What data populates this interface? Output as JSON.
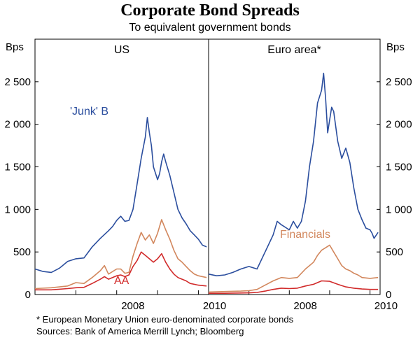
{
  "chart_data": {
    "type": "line",
    "title": "Corporate Bond Spreads",
    "subtitle": "To equivalent government bonds",
    "ylabel_left": "Bps",
    "ylabel_right": "Bps",
    "ylim": [
      0,
      3000
    ],
    "yticks": [
      0,
      500,
      1000,
      1500,
      2000,
      2500
    ],
    "ytick_labels": [
      "0",
      "500",
      "1 000",
      "1 500",
      "2 000",
      "2 500"
    ],
    "xticks": [
      2008,
      2010
    ],
    "xtick_labels": [
      "2008",
      "2010"
    ],
    "grid": false,
    "panels": [
      {
        "title": "US",
        "xlim": [
          2006.0,
          2010.25
        ],
        "series": [
          {
            "name": "'Junk' B",
            "color": "#2b4e9e",
            "points": [
              [
                2006.0,
                300
              ],
              [
                2006.2,
                270
              ],
              [
                2006.4,
                260
              ],
              [
                2006.6,
                310
              ],
              [
                2006.8,
                390
              ],
              [
                2007.0,
                420
              ],
              [
                2007.2,
                430
              ],
              [
                2007.4,
                560
              ],
              [
                2007.6,
                660
              ],
              [
                2007.8,
                750
              ],
              [
                2007.9,
                800
              ],
              [
                2008.0,
                870
              ],
              [
                2008.1,
                920
              ],
              [
                2008.2,
                860
              ],
              [
                2008.3,
                870
              ],
              [
                2008.4,
                1000
              ],
              [
                2008.5,
                1300
              ],
              [
                2008.6,
                1600
              ],
              [
                2008.7,
                1850
              ],
              [
                2008.75,
                2080
              ],
              [
                2008.8,
                1900
              ],
              [
                2008.85,
                1750
              ],
              [
                2008.9,
                1500
              ],
              [
                2009.0,
                1350
              ],
              [
                2009.05,
                1420
              ],
              [
                2009.1,
                1560
              ],
              [
                2009.15,
                1650
              ],
              [
                2009.2,
                1560
              ],
              [
                2009.3,
                1400
              ],
              [
                2009.4,
                1200
              ],
              [
                2009.5,
                1000
              ],
              [
                2009.6,
                900
              ],
              [
                2009.7,
                830
              ],
              [
                2009.8,
                750
              ],
              [
                2009.9,
                700
              ],
              [
                2010.0,
                650
              ],
              [
                2010.1,
                580
              ],
              [
                2010.2,
                560
              ]
            ]
          },
          {
            "name": "Financials",
            "color": "#d2875d",
            "points": [
              [
                2006.0,
                70
              ],
              [
                2006.4,
                80
              ],
              [
                2006.8,
                100
              ],
              [
                2007.0,
                140
              ],
              [
                2007.2,
                130
              ],
              [
                2007.4,
                200
              ],
              [
                2007.6,
                280
              ],
              [
                2007.7,
                340
              ],
              [
                2007.8,
                240
              ],
              [
                2008.0,
                300
              ],
              [
                2008.1,
                300
              ],
              [
                2008.2,
                250
              ],
              [
                2008.3,
                260
              ],
              [
                2008.4,
                450
              ],
              [
                2008.5,
                600
              ],
              [
                2008.6,
                730
              ],
              [
                2008.7,
                640
              ],
              [
                2008.8,
                700
              ],
              [
                2008.9,
                600
              ],
              [
                2009.0,
                720
              ],
              [
                2009.1,
                880
              ],
              [
                2009.2,
                760
              ],
              [
                2009.3,
                650
              ],
              [
                2009.4,
                520
              ],
              [
                2009.5,
                420
              ],
              [
                2009.6,
                380
              ],
              [
                2009.7,
                330
              ],
              [
                2009.8,
                280
              ],
              [
                2009.9,
                240
              ],
              [
                2010.0,
                220
              ],
              [
                2010.2,
                200
              ]
            ]
          },
          {
            "name": "AA",
            "color": "#d12a2a",
            "points": [
              [
                2006.0,
                55
              ],
              [
                2006.4,
                55
              ],
              [
                2006.8,
                70
              ],
              [
                2007.0,
                80
              ],
              [
                2007.2,
                85
              ],
              [
                2007.4,
                130
              ],
              [
                2007.6,
                180
              ],
              [
                2007.7,
                210
              ],
              [
                2007.8,
                180
              ],
              [
                2008.0,
                220
              ],
              [
                2008.1,
                230
              ],
              [
                2008.2,
                210
              ],
              [
                2008.3,
                230
              ],
              [
                2008.4,
                330
              ],
              [
                2008.5,
                400
              ],
              [
                2008.6,
                500
              ],
              [
                2008.7,
                460
              ],
              [
                2008.8,
                420
              ],
              [
                2008.9,
                380
              ],
              [
                2009.0,
                420
              ],
              [
                2009.1,
                480
              ],
              [
                2009.2,
                380
              ],
              [
                2009.3,
                300
              ],
              [
                2009.4,
                240
              ],
              [
                2009.5,
                200
              ],
              [
                2009.6,
                180
              ],
              [
                2009.7,
                160
              ],
              [
                2009.8,
                130
              ],
              [
                2009.9,
                120
              ],
              [
                2010.0,
                110
              ],
              [
                2010.2,
                100
              ]
            ]
          }
        ]
      },
      {
        "title": "Euro area*",
        "xlim": [
          2006.0,
          2010.25
        ],
        "series": [
          {
            "name": "'Junk' B",
            "color": "#2b4e9e",
            "points": [
              [
                2006.0,
                240
              ],
              [
                2006.2,
                220
              ],
              [
                2006.4,
                230
              ],
              [
                2006.6,
                260
              ],
              [
                2006.8,
                300
              ],
              [
                2007.0,
                330
              ],
              [
                2007.2,
                300
              ],
              [
                2007.4,
                500
              ],
              [
                2007.6,
                700
              ],
              [
                2007.7,
                860
              ],
              [
                2007.8,
                820
              ],
              [
                2008.0,
                760
              ],
              [
                2008.1,
                860
              ],
              [
                2008.2,
                780
              ],
              [
                2008.3,
                860
              ],
              [
                2008.4,
                1100
              ],
              [
                2008.5,
                1500
              ],
              [
                2008.6,
                1800
              ],
              [
                2008.7,
                2250
              ],
              [
                2008.8,
                2400
              ],
              [
                2008.85,
                2600
              ],
              [
                2008.9,
                2300
              ],
              [
                2008.95,
                1900
              ],
              [
                2009.0,
                2050
              ],
              [
                2009.05,
                2200
              ],
              [
                2009.1,
                2150
              ],
              [
                2009.2,
                1800
              ],
              [
                2009.3,
                1600
              ],
              [
                2009.4,
                1720
              ],
              [
                2009.5,
                1550
              ],
              [
                2009.6,
                1250
              ],
              [
                2009.7,
                1000
              ],
              [
                2009.8,
                880
              ],
              [
                2009.9,
                780
              ],
              [
                2010.0,
                760
              ],
              [
                2010.05,
                720
              ],
              [
                2010.1,
                660
              ],
              [
                2010.2,
                730
              ]
            ]
          },
          {
            "name": "Financials",
            "color": "#d2875d",
            "points": [
              [
                2006.0,
                30
              ],
              [
                2006.4,
                35
              ],
              [
                2006.8,
                40
              ],
              [
                2007.0,
                45
              ],
              [
                2007.2,
                60
              ],
              [
                2007.4,
                110
              ],
              [
                2007.6,
                160
              ],
              [
                2007.8,
                200
              ],
              [
                2008.0,
                190
              ],
              [
                2008.2,
                200
              ],
              [
                2008.4,
                300
              ],
              [
                2008.6,
                380
              ],
              [
                2008.7,
                460
              ],
              [
                2008.8,
                520
              ],
              [
                2008.9,
                550
              ],
              [
                2009.0,
                580
              ],
              [
                2009.1,
                500
              ],
              [
                2009.2,
                420
              ],
              [
                2009.3,
                340
              ],
              [
                2009.4,
                300
              ],
              [
                2009.5,
                280
              ],
              [
                2009.6,
                250
              ],
              [
                2009.7,
                230
              ],
              [
                2009.8,
                200
              ],
              [
                2010.0,
                190
              ],
              [
                2010.2,
                200
              ]
            ]
          },
          {
            "name": "AA",
            "color": "#d12a2a",
            "points": [
              [
                2006.0,
                15
              ],
              [
                2006.4,
                15
              ],
              [
                2006.8,
                18
              ],
              [
                2007.0,
                20
              ],
              [
                2007.2,
                25
              ],
              [
                2007.4,
                40
              ],
              [
                2007.6,
                60
              ],
              [
                2007.8,
                75
              ],
              [
                2008.0,
                70
              ],
              [
                2008.2,
                75
              ],
              [
                2008.4,
                100
              ],
              [
                2008.6,
                120
              ],
              [
                2008.8,
                160
              ],
              [
                2009.0,
                155
              ],
              [
                2009.2,
                120
              ],
              [
                2009.4,
                90
              ],
              [
                2009.6,
                75
              ],
              [
                2009.8,
                65
              ],
              [
                2010.0,
                60
              ],
              [
                2010.2,
                60
              ]
            ]
          }
        ]
      }
    ],
    "annotations": [
      {
        "text": "'Junk' B",
        "panel": 0,
        "color": "#2b4e9e"
      },
      {
        "text": "AA",
        "panel": 0,
        "color": "#d12a2a"
      },
      {
        "text": "Financials",
        "panel": 1,
        "color": "#d2875d"
      }
    ]
  },
  "footnote": "*   European Monetary Union euro-denominated corporate bonds",
  "sources": "Sources: Bank of America Merrill Lynch; Bloomberg"
}
